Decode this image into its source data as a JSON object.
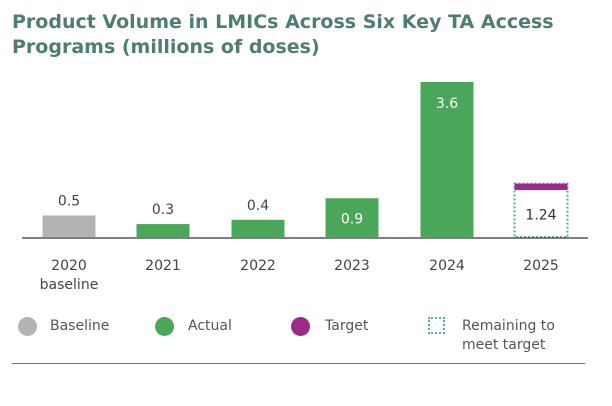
{
  "title_lines": [
    "Product Volume in LMICs Across Six Key TA Access",
    "Programs (millions of doses)"
  ],
  "colors": {
    "title": "#4d7d73",
    "baseline": "#b3b3b3",
    "actual": "#4aa75a",
    "target": "#9b2a8b",
    "remaining": "#5aa5a9",
    "axis": "#555555",
    "text": "#444444"
  },
  "chart_data": {
    "type": "bar",
    "title": "Product Volume in LMICs Across Six Key TA Access Programs (millions of doses)",
    "xlabel": "",
    "ylabel": "",
    "ylim": [
      0,
      3.6
    ],
    "grid": false,
    "categories": [
      {
        "label": [
          "2020",
          "baseline"
        ],
        "value": 0.5,
        "kind": "baseline",
        "value_label": "0.5",
        "label_inside": false
      },
      {
        "label": [
          "2021"
        ],
        "value": 0.3,
        "kind": "actual",
        "value_label": "0.3",
        "label_inside": false
      },
      {
        "label": [
          "2022"
        ],
        "value": 0.4,
        "kind": "actual",
        "value_label": "0.4",
        "label_inside": false
      },
      {
        "label": [
          "2023"
        ],
        "value": 0.9,
        "kind": "actual",
        "value_label": "0.9",
        "label_inside": true
      },
      {
        "label": [
          "2024"
        ],
        "value": 3.6,
        "kind": "actual",
        "value_label": "3.6",
        "label_inside": true
      },
      {
        "label": [
          "2025"
        ],
        "value": 1.24,
        "kind": "remaining",
        "value_label": "1.24",
        "label_inside": true,
        "target_segment": 0.3
      }
    ],
    "legend": [
      {
        "label": "Baseline",
        "kind": "baseline"
      },
      {
        "label": "Actual",
        "kind": "actual"
      },
      {
        "label": "Target",
        "kind": "target"
      },
      {
        "label": "Remaining to meet target",
        "kind": "remaining",
        "lines": [
          "Remaining to",
          "meet target"
        ]
      }
    ],
    "legend_position": "bottom"
  }
}
